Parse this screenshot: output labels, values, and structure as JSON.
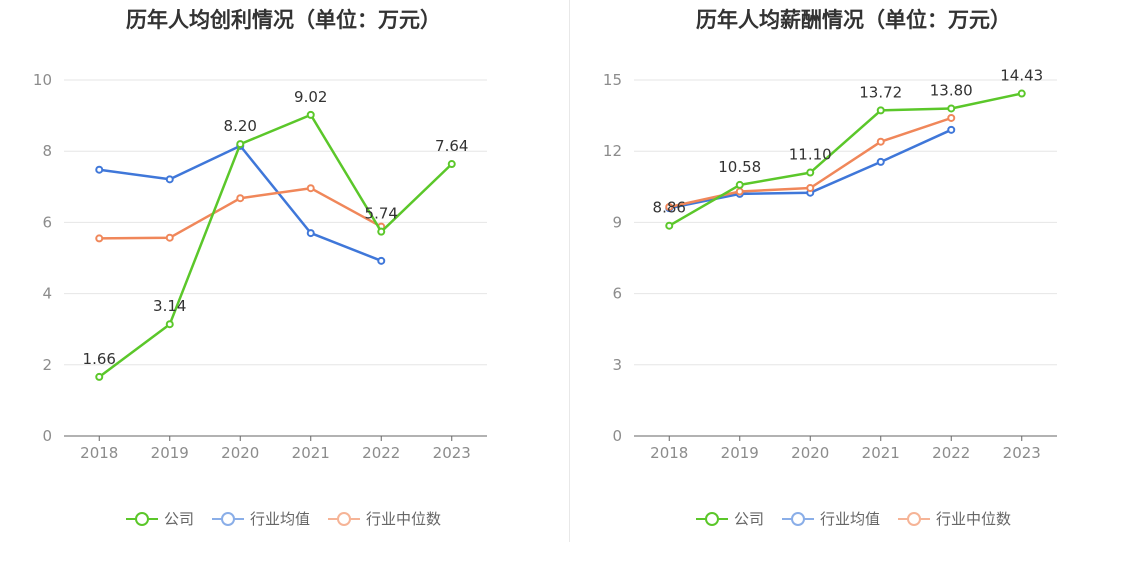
{
  "charts": [
    {
      "title": "历年人均创利情况（单位：万元）",
      "legend": [
        {
          "name": "公司",
          "color": "#5bc72a"
        },
        {
          "name": "行业均值",
          "color": "#3f77d9"
        },
        {
          "name": "行业中位数",
          "color": "#f0875a"
        }
      ]
    },
    {
      "title": "历年人均薪酬情况（单位：万元）",
      "legend": [
        {
          "name": "公司",
          "color": "#5bc72a"
        },
        {
          "name": "行业均值",
          "color": "#3f77d9"
        },
        {
          "name": "行业中位数",
          "color": "#f0875a"
        }
      ]
    }
  ],
  "chart_data": [
    {
      "type": "line",
      "title": "历年人均创利情况（单位：万元）",
      "categories": [
        "2018",
        "2019",
        "2020",
        "2021",
        "2022",
        "2023"
      ],
      "ylim": [
        0,
        10
      ],
      "yticks": [
        0,
        2,
        4,
        6,
        8,
        10
      ],
      "series": [
        {
          "name": "公司",
          "color": "#5bc72a",
          "values": [
            1.66,
            3.14,
            8.2,
            9.02,
            5.74,
            7.64
          ],
          "labels": [
            "1.66",
            "3.14",
            "8.20",
            "9.02",
            "5.74",
            "7.64"
          ]
        },
        {
          "name": "行业均值",
          "color": "#3f77d9",
          "values": [
            7.48,
            7.21,
            8.15,
            5.7,
            4.92,
            null
          ]
        },
        {
          "name": "行业中位数",
          "color": "#f0875a",
          "values": [
            5.55,
            5.57,
            6.68,
            6.96,
            5.88,
            null
          ]
        }
      ]
    },
    {
      "type": "line",
      "title": "历年人均薪酬情况（单位：万元）",
      "categories": [
        "2018",
        "2019",
        "2020",
        "2021",
        "2022",
        "2023"
      ],
      "ylim": [
        0,
        15
      ],
      "yticks": [
        0,
        3,
        6,
        9,
        12,
        15
      ],
      "series": [
        {
          "name": "公司",
          "color": "#5bc72a",
          "values": [
            8.86,
            10.58,
            11.1,
            13.72,
            13.8,
            14.43
          ],
          "labels": [
            "8.86",
            "10.58",
            "11.10",
            "13.72",
            "13.80",
            "14.43"
          ]
        },
        {
          "name": "行业均值",
          "color": "#3f77d9",
          "values": [
            9.6,
            10.2,
            10.25,
            11.55,
            12.9,
            null
          ]
        },
        {
          "name": "行业中位数",
          "color": "#f0875a",
          "values": [
            9.65,
            10.3,
            10.45,
            12.4,
            13.4,
            null
          ]
        }
      ]
    }
  ]
}
